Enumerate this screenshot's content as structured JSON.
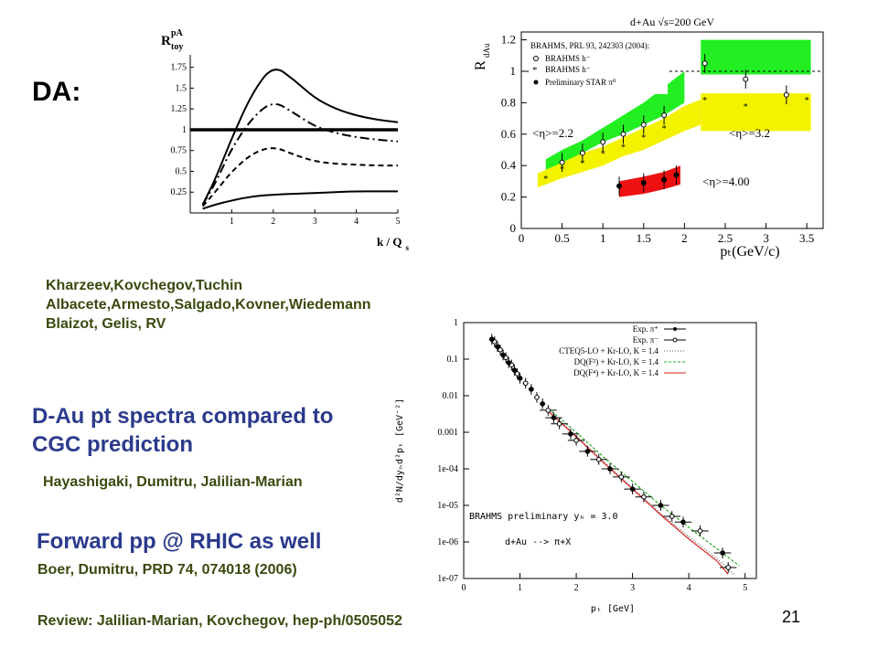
{
  "slide": {
    "da_label": "DA:",
    "refs1": [
      "Kharzeev,Kovchegov,Tuchin",
      "Albacete,Armesto,Salgado,Kovner,Wiedemann",
      "Blaizot, Gelis, RV"
    ],
    "heading1_line1": "D-Au pt spectra compared to",
    "heading1_line2": "CGC prediction",
    "refs2": "Hayashigaki, Dumitru, Jalilian-Marian",
    "heading2": "Forward pp @ RHIC as well",
    "refs3": "Boer, Dumitru, PRD 74, 074018 (2006)",
    "review": "Review: Jalilian-Marian, Kovchegov, hep-ph/0505052",
    "page_number": "21",
    "colors": {
      "navy": "#2b3a8c",
      "olive": "#3a4a10"
    }
  },
  "chart_data": [
    {
      "type": "line",
      "ylabel_main": "R",
      "ylabel_sup": "pA",
      "ylabel_sub": "toy",
      "xlabel_main": "k / Q",
      "xlabel_sub": "s",
      "xlim": [
        0,
        5
      ],
      "ylim": [
        0,
        1.9
      ],
      "xticks": [
        "1",
        "2",
        "3",
        "4",
        "5"
      ],
      "yticks": [
        "0.25",
        "0.5",
        "0.75",
        "1",
        "1.25",
        "1.5",
        "1.75"
      ],
      "ytick_values": [
        0.25,
        0.5,
        0.75,
        1,
        1.25,
        1.5,
        1.75
      ],
      "series": [
        {
          "style": "thick",
          "x": [
            0,
            5
          ],
          "y": [
            1,
            1
          ]
        },
        {
          "style": "solid",
          "x": [
            0.3,
            0.6,
            1,
            1.5,
            2,
            2.5,
            3,
            3.5,
            4,
            4.5,
            5
          ],
          "y": [
            0.1,
            0.4,
            0.9,
            1.45,
            1.78,
            1.6,
            1.38,
            1.25,
            1.17,
            1.12,
            1.09
          ]
        },
        {
          "style": "dashdot",
          "x": [
            0.3,
            0.6,
            1,
            1.5,
            2,
            2.5,
            3,
            3.5,
            4,
            4.5,
            5
          ],
          "y": [
            0.1,
            0.35,
            0.78,
            1.15,
            1.35,
            1.2,
            1.04,
            0.96,
            0.91,
            0.88,
            0.86
          ]
        },
        {
          "style": "dashed",
          "x": [
            0.3,
            0.6,
            1,
            1.5,
            2,
            2.5,
            3,
            3.5,
            4,
            4.5,
            5
          ],
          "y": [
            0.08,
            0.25,
            0.5,
            0.72,
            0.8,
            0.7,
            0.62,
            0.59,
            0.58,
            0.57,
            0.57
          ]
        },
        {
          "style": "solid",
          "x": [
            0.3,
            0.6,
            1,
            1.5,
            2,
            2.5,
            3,
            3.5,
            4,
            4.5,
            5
          ],
          "y": [
            0.05,
            0.1,
            0.15,
            0.2,
            0.22,
            0.23,
            0.24,
            0.25,
            0.26,
            0.26,
            0.26
          ]
        }
      ]
    },
    {
      "type": "scatter",
      "title": "d+Au √s=200 GeV",
      "ylabel": "R",
      "ylabel_sub": "dAu",
      "xlabel": "pₜ(GeV/c)",
      "xlim": [
        0,
        3.7
      ],
      "ylim": [
        0,
        1.25
      ],
      "xticks": [
        0,
        0.5,
        1,
        1.5,
        2,
        2.5,
        3,
        3.5
      ],
      "xtick_labels": [
        "0",
        "0.5",
        "1",
        "1.5",
        "2",
        "2.5",
        "3",
        "3.5"
      ],
      "yticks": [
        0,
        0.2,
        0.4,
        0.6,
        0.8,
        1,
        1.2
      ],
      "ytick_labels": [
        "0",
        "0.2",
        "0.4",
        "0.6",
        "0.8",
        "1",
        "1.2"
      ],
      "legend": [
        "BRAHMS, PRL 93, 242303 (2004):",
        "BRAHMS h⁻",
        "BRAHMS h⁻",
        "Preliminary STAR π⁰"
      ],
      "annotations": [
        "<η>=2.2",
        "<η>=3.2",
        "<η>=4.00"
      ],
      "bands": [
        {
          "color": "#22ee22",
          "x": [
            0.3,
            0.5,
            0.75,
            1,
            1.25,
            1.5,
            1.75,
            2
          ],
          "lo": [
            0.36,
            0.42,
            0.48,
            0.55,
            0.6,
            0.66,
            0.72,
            0.8
          ],
          "hi": [
            0.44,
            0.5,
            0.56,
            0.64,
            0.72,
            0.8,
            0.9,
            1.0
          ]
        },
        {
          "color": "#22ee22",
          "x": [
            2.2,
            3.55
          ],
          "lo": [
            0.98,
            0.98
          ],
          "hi": [
            1.2,
            1.2
          ]
        },
        {
          "color": "#f3f300",
          "x": [
            0.2,
            0.5,
            0.75,
            1,
            1.25,
            1.5,
            1.75,
            2,
            2.2
          ],
          "lo": [
            0.26,
            0.32,
            0.36,
            0.4,
            0.46,
            0.5,
            0.56,
            0.62,
            0.66
          ],
          "hi": [
            0.35,
            0.42,
            0.48,
            0.52,
            0.58,
            0.64,
            0.7,
            0.78,
            0.82
          ]
        },
        {
          "color": "#f3f300",
          "x": [
            2.2,
            3.55
          ],
          "lo": [
            0.62,
            0.62
          ],
          "hi": [
            0.86,
            0.86
          ]
        },
        {
          "color": "#ee1111",
          "x": [
            1.2,
            1.5,
            1.75,
            1.95
          ],
          "lo": [
            0.2,
            0.22,
            0.25,
            0.28
          ],
          "hi": [
            0.3,
            0.33,
            0.36,
            0.4
          ]
        }
      ],
      "points_open": {
        "x": [
          0.5,
          0.75,
          1,
          1.25,
          1.5,
          1.75,
          2.25,
          2.75,
          3.25
        ],
        "y": [
          0.42,
          0.48,
          0.55,
          0.6,
          0.66,
          0.72,
          1.05,
          0.95,
          0.85
        ]
      },
      "points_star": {
        "x": [
          0.3,
          0.5,
          0.75,
          1,
          1.25,
          1.5,
          1.75,
          2.25,
          2.75,
          3.5
        ],
        "y": [
          0.32,
          0.38,
          0.42,
          0.48,
          0.52,
          0.58,
          0.64,
          0.82,
          0.78,
          0.82
        ]
      },
      "points_filled": {
        "x": [
          1.2,
          1.5,
          1.75,
          1.9
        ],
        "y": [
          0.27,
          0.29,
          0.31,
          0.34
        ]
      }
    },
    {
      "type": "scatter",
      "ylabel": "d²N/dyₕd²pₜ [GeV⁻²]",
      "xlabel": "pₜ [GeV]",
      "log_y": true,
      "xlim": [
        0,
        5.2
      ],
      "ylim_exp": [
        -7,
        0
      ],
      "xticks": [
        0,
        1,
        2,
        3,
        4,
        5
      ],
      "xtick_labels": [
        "0",
        "1",
        "2",
        "3",
        "4",
        "5"
      ],
      "ytick_exps": [
        0,
        -1,
        -2,
        -3,
        -4,
        -5,
        -6,
        -7
      ],
      "ytick_labels": [
        "1",
        "0.1",
        "0.01",
        "0.001",
        "1e-04",
        "1e-05",
        "1e-06",
        "1e-07"
      ],
      "legend": [
        "Exp. π⁺",
        "Exp. π⁻",
        "CTEQ5-LO + Kr-LO, K = 1.4",
        "DQ(F²) + Kr-LO, K = 1.4",
        "DQ(F⁴) + Kr-LO, K = 1.4"
      ],
      "annotations": [
        "BRAHMS preliminary yₕ = 3.0",
        "d+Au --> π+X"
      ],
      "line_colors": [
        "#555555",
        "#22aa22",
        "#dd2222"
      ],
      "points_plus": {
        "x": [
          0.5,
          0.6,
          0.7,
          0.8,
          0.9,
          1.0,
          1.2,
          1.4,
          1.6,
          1.9,
          2.2,
          2.6,
          3.0,
          3.5,
          3.9,
          4.6
        ],
        "y": [
          0.35,
          0.22,
          0.13,
          0.08,
          0.05,
          0.03,
          0.015,
          0.006,
          0.0025,
          0.0009,
          0.0003,
          0.0001,
          2.8e-05,
          1e-05,
          3.5e-06,
          5e-07
        ]
      },
      "points_minus": {
        "x": [
          0.55,
          0.65,
          0.75,
          0.85,
          0.95,
          1.1,
          1.3,
          1.5,
          1.7,
          2.0,
          2.4,
          2.8,
          3.2,
          3.7,
          4.2,
          4.7
        ],
        "y": [
          0.3,
          0.18,
          0.11,
          0.07,
          0.04,
          0.022,
          0.009,
          0.004,
          0.0017,
          0.0006,
          0.00018,
          6e-05,
          1.7e-05,
          5e-06,
          2e-06,
          2e-07
        ]
      },
      "curves": [
        {
          "x": [
            1.5,
            2,
            2.5,
            3,
            3.5,
            4,
            4.5,
            4.8
          ],
          "y": [
            0.004,
            0.0008,
            0.00015,
            3e-05,
            6e-06,
            1.4e-06,
            3.5e-07,
            1.3e-07
          ]
        },
        {
          "x": [
            1.5,
            2,
            2.5,
            3,
            3.5,
            4,
            4.5,
            4.9
          ],
          "y": [
            0.0045,
            0.001,
            0.0002,
            4.5e-05,
            1e-05,
            2.5e-06,
            6.5e-07,
            2.2e-07
          ]
        },
        {
          "x": [
            1.5,
            2,
            2.5,
            3,
            3.5,
            4,
            4.5,
            4.7
          ],
          "y": [
            0.0038,
            0.00075,
            0.00014,
            2.8e-05,
            5.5e-06,
            1.2e-06,
            3e-07,
            1.3e-07
          ]
        }
      ]
    }
  ]
}
